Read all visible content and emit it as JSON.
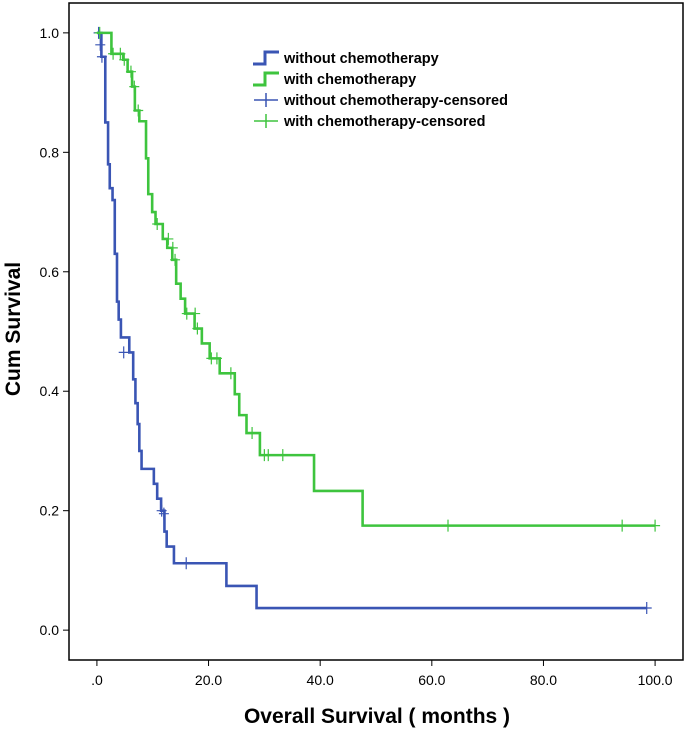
{
  "chart_data": {
    "type": "line",
    "title": "",
    "xlabel": "Overall Survival ( months )",
    "ylabel": "Cum Survival",
    "xlim": [
      -5,
      105
    ],
    "ylim": [
      -0.05,
      1.05
    ],
    "xticks": [
      0,
      20,
      40,
      60,
      80,
      100
    ],
    "xtick_labels": [
      ".0",
      "20.0",
      "40.0",
      "60.0",
      "80.0",
      "100.0"
    ],
    "yticks": [
      0.0,
      0.2,
      0.4,
      0.6,
      0.8,
      1.0
    ],
    "ytick_labels": [
      "0.0",
      "0.2",
      "0.4",
      "0.6",
      "0.8",
      "1.0"
    ],
    "grid": false,
    "legend_position": "top-right",
    "legend": [
      {
        "label": "without chemotherapy",
        "kind": "line",
        "color": "#3a55b4"
      },
      {
        "label": "with chemotherapy",
        "kind": "line",
        "color": "#3ec43e"
      },
      {
        "label": "without chemotherapy-censored",
        "kind": "censor",
        "color": "#3a55b4"
      },
      {
        "label": "with chemotherapy-censored",
        "kind": "censor",
        "color": "#3ec43e"
      }
    ],
    "series": [
      {
        "name": "without chemotherapy",
        "color": "#3a55b4",
        "steps": [
          [
            0,
            1.0
          ],
          [
            0.8,
            0.96
          ],
          [
            1.5,
            0.85
          ],
          [
            2.0,
            0.78
          ],
          [
            2.3,
            0.74
          ],
          [
            2.8,
            0.72
          ],
          [
            3.2,
            0.63
          ],
          [
            3.6,
            0.55
          ],
          [
            3.9,
            0.52
          ],
          [
            4.3,
            0.49
          ],
          [
            5.8,
            0.465
          ],
          [
            6.5,
            0.42
          ],
          [
            6.9,
            0.38
          ],
          [
            7.3,
            0.345
          ],
          [
            7.6,
            0.3
          ],
          [
            8.0,
            0.27
          ],
          [
            10.2,
            0.245
          ],
          [
            10.8,
            0.22
          ],
          [
            11.5,
            0.2
          ],
          [
            12.1,
            0.165
          ],
          [
            12.5,
            0.14
          ],
          [
            13.8,
            0.112
          ],
          [
            23.2,
            0.074
          ],
          [
            28.6,
            0.037
          ],
          [
            98.5,
            0.037
          ]
        ],
        "censored": [
          [
            0.3,
            1.0
          ],
          [
            0.6,
            0.98
          ],
          [
            0.9,
            0.96
          ],
          [
            4.8,
            0.465
          ],
          [
            11.6,
            0.2
          ],
          [
            12.0,
            0.195
          ],
          [
            16.0,
            0.112
          ],
          [
            98.5,
            0.037
          ]
        ]
      },
      {
        "name": "with chemotherapy",
        "color": "#3ec43e",
        "steps": [
          [
            0,
            1.0
          ],
          [
            2.6,
            0.965
          ],
          [
            4.7,
            0.955
          ],
          [
            5.5,
            0.935
          ],
          [
            6.3,
            0.91
          ],
          [
            6.8,
            0.87
          ],
          [
            7.6,
            0.852
          ],
          [
            8.8,
            0.79
          ],
          [
            9.2,
            0.73
          ],
          [
            9.9,
            0.7
          ],
          [
            10.5,
            0.68
          ],
          [
            11.8,
            0.655
          ],
          [
            12.6,
            0.64
          ],
          [
            13.5,
            0.62
          ],
          [
            14.2,
            0.58
          ],
          [
            15.0,
            0.555
          ],
          [
            15.8,
            0.53
          ],
          [
            17.5,
            0.505
          ],
          [
            18.8,
            0.48
          ],
          [
            20.2,
            0.455
          ],
          [
            22.0,
            0.43
          ],
          [
            24.7,
            0.395
          ],
          [
            25.5,
            0.36
          ],
          [
            26.8,
            0.33
          ],
          [
            29.2,
            0.293
          ],
          [
            38.9,
            0.233
          ],
          [
            47.6,
            0.175
          ],
          [
            100.0,
            0.175
          ]
        ],
        "censored": [
          [
            0.5,
            1.0
          ],
          [
            2.9,
            0.965
          ],
          [
            4.2,
            0.965
          ],
          [
            4.9,
            0.955
          ],
          [
            6.1,
            0.935
          ],
          [
            6.7,
            0.91
          ],
          [
            7.4,
            0.87
          ],
          [
            10.8,
            0.68
          ],
          [
            12.8,
            0.655
          ],
          [
            13.6,
            0.64
          ],
          [
            14.0,
            0.62
          ],
          [
            16.1,
            0.53
          ],
          [
            17.6,
            0.53
          ],
          [
            18.0,
            0.505
          ],
          [
            20.5,
            0.455
          ],
          [
            21.5,
            0.455
          ],
          [
            24.0,
            0.43
          ],
          [
            27.8,
            0.33
          ],
          [
            30.0,
            0.293
          ],
          [
            30.7,
            0.293
          ],
          [
            33.3,
            0.293
          ],
          [
            62.9,
            0.175
          ],
          [
            94.1,
            0.175
          ],
          [
            100.0,
            0.175
          ]
        ]
      }
    ]
  }
}
